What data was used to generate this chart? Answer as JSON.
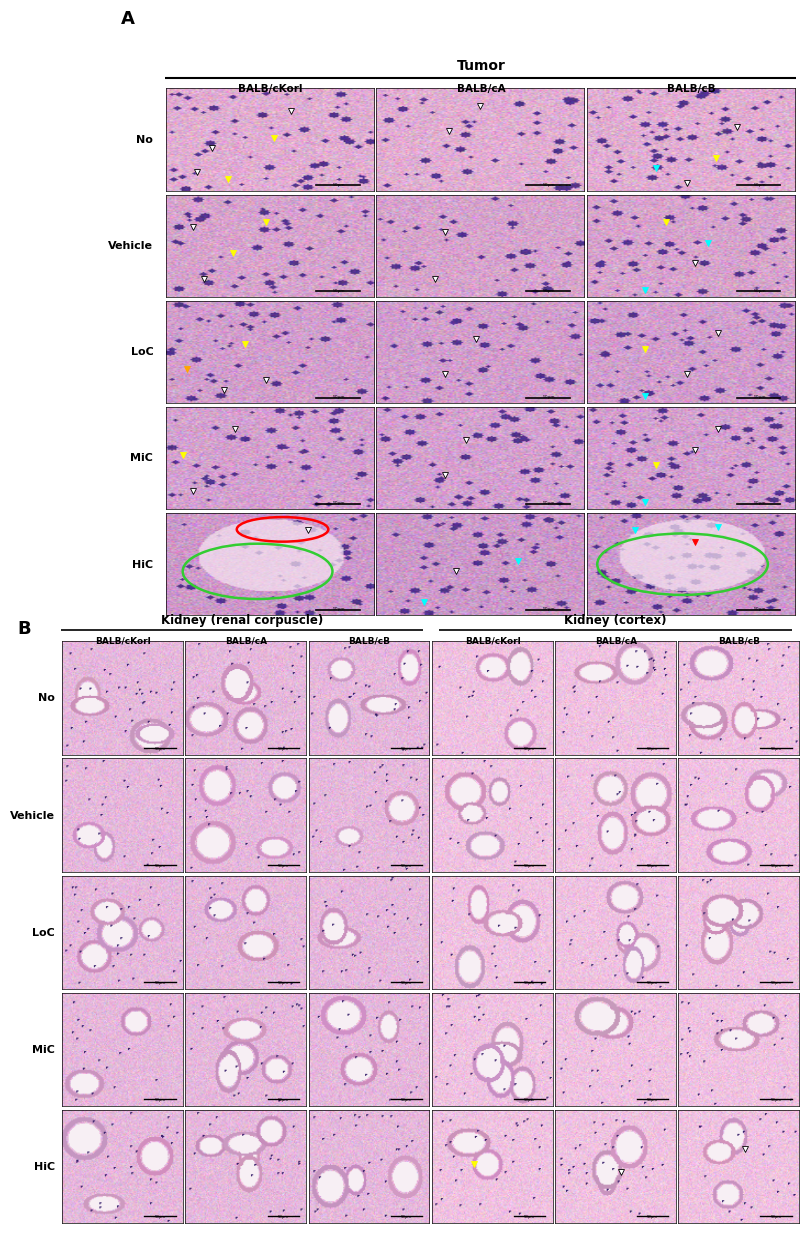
{
  "figure_width": 7.99,
  "figure_height": 12.4,
  "background_color": "#ffffff",
  "panel_A": {
    "label": "A",
    "section_title": "Tumor",
    "col_headers": [
      "BALB/cKorl",
      "BALB/cA",
      "BALB/cB"
    ],
    "row_labels": [
      "No",
      "Vehicle",
      "LoC",
      "MiC",
      "HiC"
    ],
    "n_rows": 5,
    "n_cols": 3
  },
  "panel_B": {
    "label": "B",
    "section_titles": [
      "Kidney (renal corpuscle)",
      "Kidney (cortex)"
    ],
    "col_headers": [
      "BALB/cKorl",
      "BALB/cA",
      "BALB/cB",
      "BALB/cKorl",
      "BALB/cA",
      "BALB/cB"
    ],
    "row_labels": [
      "No",
      "Vehicle",
      "LoC",
      "MiC",
      "HiC"
    ],
    "n_rows": 5,
    "n_cols": 6
  },
  "row_label_fontsize": 8,
  "col_header_fontsize": 7.5,
  "section_title_fontsize": 10,
  "panel_label_fontsize": 13
}
